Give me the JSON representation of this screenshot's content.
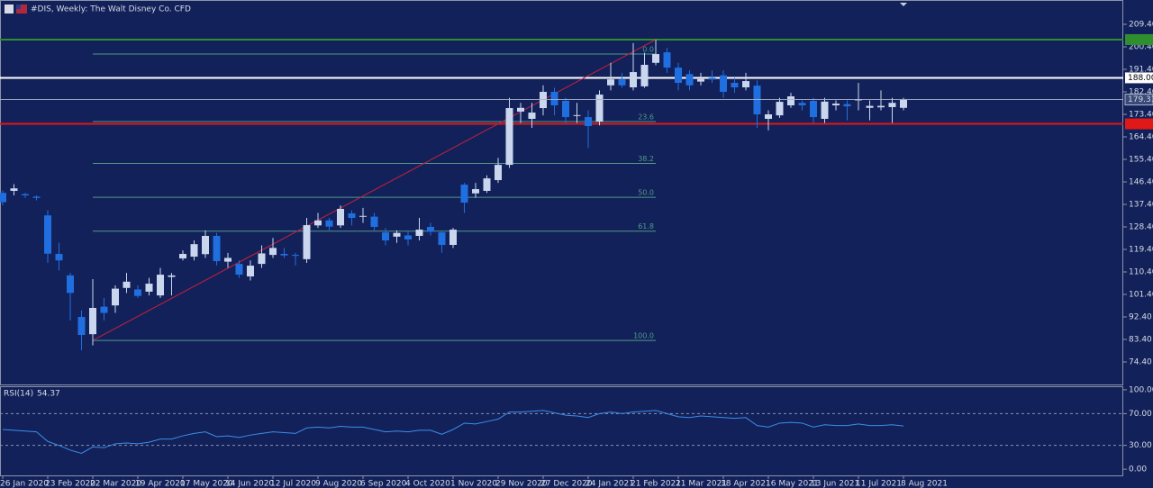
{
  "title": "#DIS, Weekly: The Walt Disney Co. CFD",
  "chart_data": [
    {
      "type": "candlestick",
      "categories": [
        "26 Jan 2020",
        null,
        null,
        null,
        "23 Feb 2020",
        null,
        null,
        null,
        "22 Mar 2020",
        null,
        null,
        null,
        "19 Apr 2020",
        null,
        null,
        null,
        "17 May 2020",
        null,
        null,
        null,
        "14 Jun 2020",
        null,
        null,
        null,
        "12 Jul 2020",
        null,
        null,
        null,
        "9 Aug 2020",
        null,
        null,
        null,
        "6 Sep 2020",
        null,
        null,
        null,
        "4 Oct 2020",
        null,
        null,
        null,
        "1 Nov 2020",
        null,
        null,
        null,
        "29 Nov 2020",
        null,
        null,
        null,
        "27 Dec 2020",
        null,
        null,
        null,
        "24 Jan 2021",
        null,
        null,
        null,
        "21 Feb 2021",
        null,
        null,
        null,
        "21 Mar 2021",
        null,
        null,
        null,
        "18 Apr 2021",
        null,
        null,
        null,
        "16 May 2021",
        null,
        null,
        null,
        "13 Jun 2021",
        null,
        null,
        null,
        "11 Jul 2021",
        null,
        null,
        null,
        "8 Aug 2021"
      ],
      "open": [
        142,
        142.8,
        141.5,
        140.5,
        133,
        117.6,
        109,
        92.4,
        85.5,
        96.5,
        97,
        104,
        103.4,
        102.5,
        101,
        108.4,
        115.8,
        116.5,
        117.5,
        124.8,
        114.5,
        113.6,
        108.6,
        113.6,
        117.2,
        117.6,
        117.2,
        115.5,
        129,
        131,
        129,
        133.8,
        132.5,
        132.5,
        126.2,
        124.5,
        125,
        124.8,
        128.4,
        126.2,
        121.2,
        145.3,
        141.8,
        142.8,
        147.1,
        153.2,
        174.5,
        171.6,
        175.9,
        182.4,
        178.8,
        172.8,
        172.3,
        170.5,
        185,
        187.4,
        184.2,
        184.6,
        194,
        198.2,
        192.1,
        189.5,
        186.5,
        188,
        189,
        186,
        184.2,
        184.9,
        171.6,
        173,
        177,
        178,
        178.8,
        171.6,
        177,
        177.5,
        179,
        176,
        176.2,
        176.3,
        176
      ],
      "high": [
        143,
        145.5,
        142,
        141,
        135,
        122,
        110,
        95,
        107.5,
        100,
        105,
        110,
        105,
        108,
        112,
        110,
        119,
        123,
        127,
        126,
        118,
        115,
        115,
        121,
        124,
        120,
        118,
        132,
        134,
        132,
        137,
        135,
        136,
        134,
        128,
        127,
        127,
        132,
        130,
        127,
        128,
        146,
        146,
        149,
        156,
        180,
        178,
        178,
        185,
        184,
        180,
        178,
        175,
        183,
        194,
        190,
        201.9,
        198,
        203.3,
        200,
        194,
        191,
        190,
        191,
        191,
        188,
        190,
        187,
        175,
        180,
        182,
        179,
        180,
        180,
        179,
        179,
        186,
        179,
        183,
        180,
        180
      ],
      "low": [
        137,
        141,
        140,
        139,
        114,
        111,
        91,
        79.1,
        81,
        91,
        94,
        102,
        100,
        101,
        100,
        101,
        115,
        115,
        116,
        113,
        112,
        108,
        107,
        112,
        116,
        116,
        113,
        114,
        128,
        127,
        128,
        129,
        130,
        127,
        121,
        122,
        121,
        123,
        125,
        118,
        120,
        134,
        140,
        142,
        146,
        152,
        170,
        168,
        173,
        173,
        170,
        170,
        160,
        169,
        183,
        184,
        183,
        184,
        193,
        190,
        183,
        183,
        185,
        186,
        180,
        182,
        183,
        168,
        167,
        172,
        176,
        175,
        170,
        170,
        175,
        171,
        175,
        171,
        175,
        170,
        175
      ],
      "close": [
        138.3,
        143.8,
        141,
        140,
        117.7,
        115,
        102,
        85.2,
        96,
        94,
        103.7,
        106.5,
        100.8,
        105.7,
        109.3,
        109,
        117.6,
        121.5,
        124.8,
        114.7,
        116,
        109.3,
        112.9,
        117.8,
        120,
        117,
        116.9,
        129.1,
        131,
        128.5,
        135.6,
        132,
        132.8,
        128.4,
        123,
        126,
        123.4,
        127.3,
        126.5,
        121.2,
        127.3,
        138.1,
        143.5,
        147.8,
        153.2,
        175.9,
        176,
        174.1,
        182.4,
        177,
        172.3,
        173.1,
        168.7,
        181.3,
        187.4,
        185,
        190.3,
        193.2,
        197.5,
        192.1,
        186,
        185,
        187.5,
        187.3,
        182.4,
        184.2,
        186.7,
        173.4,
        173.4,
        178.4,
        180.6,
        177,
        172.3,
        178.5,
        177.7,
        176.6,
        179.5,
        176.8,
        176.8,
        178,
        179.31
      ],
      "up_color": "#c9d6ee",
      "down_color": "#1f6fe0",
      "price_line_color": "#aab4c8",
      "ylim": [
        65.04,
        219.12
      ],
      "yticks": [
        {
          "value": 209.4,
          "label": "209.40"
        },
        {
          "value": 200.4,
          "label": "200.40"
        },
        {
          "value": 191.4,
          "label": "191.40"
        },
        {
          "value": 182.4,
          "label": "182.40"
        },
        {
          "value": 173.4,
          "label": "173.40"
        },
        {
          "value": 164.4,
          "label": "164.40"
        },
        {
          "value": 155.4,
          "label": "155.40"
        },
        {
          "value": 146.4,
          "label": "146.40"
        },
        {
          "value": 137.4,
          "label": "137.40"
        },
        {
          "value": 128.4,
          "label": "128.40"
        },
        {
          "value": 119.4,
          "label": "119.40"
        },
        {
          "value": 110.4,
          "label": "110.40"
        },
        {
          "value": 101.4,
          "label": "101.40"
        },
        {
          "value": 92.4,
          "label": "92.40"
        },
        {
          "value": 83.4,
          "label": "83.40"
        },
        {
          "value": 74.4,
          "label": "74.40"
        }
      ],
      "hlines": [
        {
          "value": 203.3,
          "color": "#2f8f2f"
        },
        {
          "value": 188,
          "label": "188.00",
          "color": "#ffffff"
        },
        {
          "value": 169.6,
          "color": "#e01818"
        }
      ],
      "trendline": {
        "from_index": 8,
        "from_value": 83,
        "to_index": 58,
        "to_value": 203.3,
        "color": "#c8203c"
      },
      "fib": {
        "start_index": 8,
        "end_index": 58,
        "color": "#4e9a88",
        "levels": [
          {
            "label": "0.0",
            "value": 197.5
          },
          {
            "label": "23.6",
            "value": 170.5
          },
          {
            "label": "38.2",
            "value": 153.8
          },
          {
            "label": "50.0",
            "value": 140.25
          },
          {
            "label": "61.8",
            "value": 126.7
          },
          {
            "label": "100.0",
            "value": 83
          }
        ]
      }
    },
    {
      "type": "line",
      "title": "RSI(14)",
      "color": "#3a8ee6",
      "values": [
        50,
        49,
        48,
        47,
        35,
        30,
        24,
        20,
        28,
        27,
        32,
        33,
        32,
        34,
        38,
        38,
        42,
        45,
        47,
        41,
        42,
        40,
        43,
        45,
        47,
        46,
        45,
        52,
        53,
        52,
        54,
        53,
        53,
        50,
        47,
        48,
        47,
        49,
        49,
        44,
        50,
        58,
        57,
        60,
        63,
        72,
        72,
        73,
        74,
        71,
        68,
        67,
        65,
        70,
        72,
        70,
        72,
        73,
        74,
        70,
        66,
        65,
        67,
        66,
        65,
        64,
        65,
        55,
        53,
        58,
        59,
        58,
        53,
        56,
        55,
        55,
        57,
        55,
        55,
        56,
        54.37
      ],
      "ylim": [
        -7.8,
        103.3
      ],
      "yticks": [
        {
          "value": 100,
          "label": "100.00"
        },
        {
          "value": 70,
          "label": "70.00"
        },
        {
          "value": 30,
          "label": "30.00"
        },
        {
          "value": 0,
          "label": "0.00"
        }
      ],
      "dashed_levels": [
        70,
        30
      ]
    }
  ]
}
